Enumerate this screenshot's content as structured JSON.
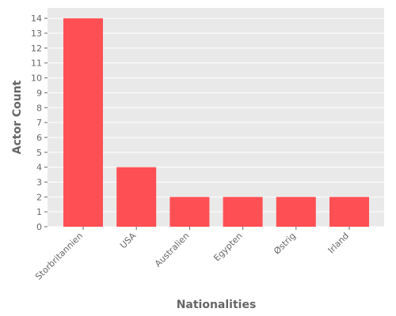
{
  "chart_data": {
    "type": "bar",
    "title": "",
    "xlabel": "Nationalities",
    "ylabel": "Actor Count",
    "categories": [
      "Storbritannien",
      "USA",
      "Australien",
      "Egypten",
      "Østrig",
      "Irland"
    ],
    "values": [
      14,
      4,
      2,
      2,
      2,
      2
    ],
    "ylim": [
      0,
      14.7
    ],
    "yticks": [
      "0",
      "1",
      "2",
      "3",
      "4",
      "5",
      "6",
      "7",
      "8",
      "9",
      "10",
      "11",
      "12",
      "13",
      "14"
    ],
    "grid": true,
    "legend": "none",
    "colors": {
      "bar": "#fe5054",
      "plot_background": "#e9e9e9",
      "grid": "#ffffff",
      "text": "#666666"
    }
  }
}
